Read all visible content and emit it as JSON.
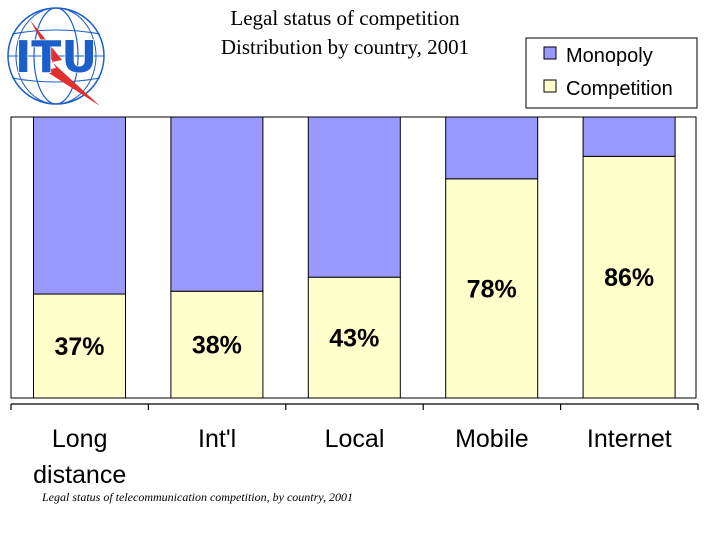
{
  "logo": {
    "text": "ITU"
  },
  "header": {
    "title_line1": "Legal status of competition",
    "title_line2": "Distribution by country, 2001"
  },
  "caption": "Legal status of telecommunication competition, by country, 2001",
  "colors": {
    "monopoly": "#9999ff",
    "competition": "#ffffcc",
    "plot_background": "#ffffff",
    "border": "#000000",
    "logo_blue": "#1c5fc9",
    "logo_red": "#e03030"
  },
  "chart_data": {
    "type": "bar",
    "stacked": true,
    "percent": true,
    "categories": [
      [
        "Long",
        "distance"
      ],
      [
        "Int'l"
      ],
      [
        "Local"
      ],
      [
        "Mobile"
      ],
      [
        "Internet"
      ]
    ],
    "series": [
      {
        "name": "Competition",
        "values": [
          37,
          38,
          43,
          78,
          86
        ]
      },
      {
        "name": "Monopoly",
        "values": [
          63,
          62,
          57,
          22,
          14
        ]
      }
    ],
    "data_labels": [
      "37%",
      "38%",
      "43%",
      "78%",
      "86%"
    ],
    "ylim": [
      0,
      100
    ],
    "legend": {
      "placement": "top-right",
      "entries": [
        "Monopoly",
        "Competition"
      ]
    }
  }
}
